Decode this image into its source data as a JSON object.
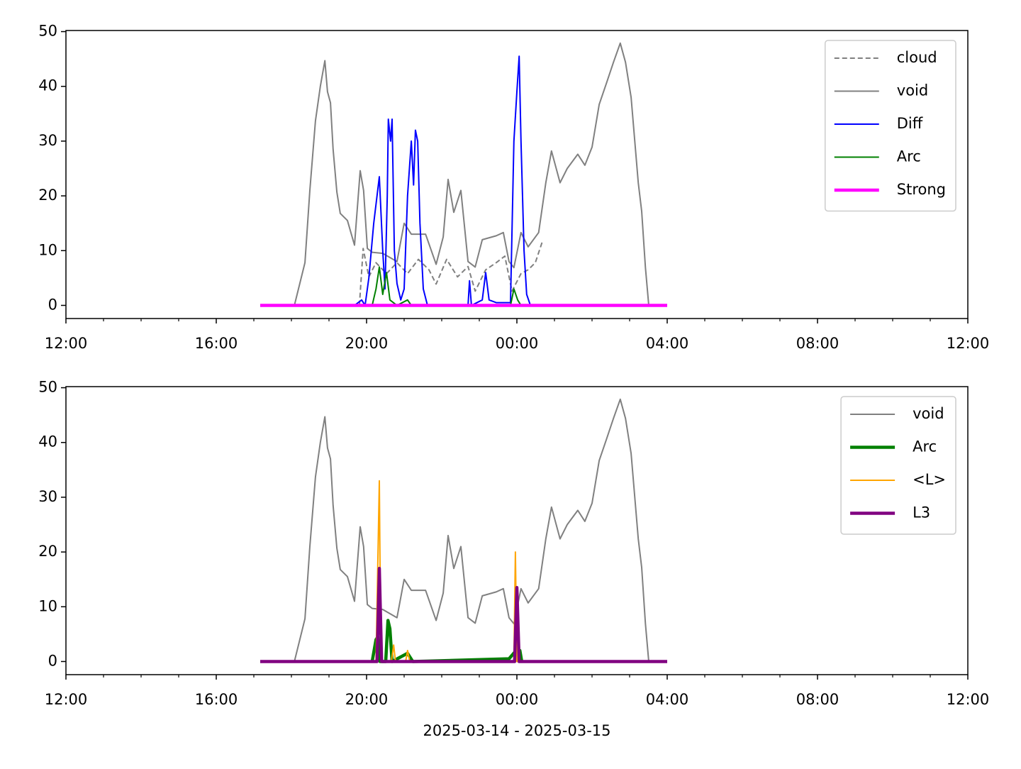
{
  "chart_data": [
    {
      "type": "line",
      "xlim": [
        12,
        36
      ],
      "ylim": [
        -2.4,
        50.2
      ],
      "xticks": [
        {
          "value": 12,
          "label": "12:00"
        },
        {
          "value": 16,
          "label": "16:00"
        },
        {
          "value": 20,
          "label": "20:00"
        },
        {
          "value": 24,
          "label": "00:00"
        },
        {
          "value": 28,
          "label": "04:00"
        },
        {
          "value": 32,
          "label": "08:00"
        },
        {
          "value": 36,
          "label": "12:00"
        }
      ],
      "xminorticks": [
        13,
        14,
        15,
        17,
        18,
        19,
        21,
        22,
        23,
        25,
        26,
        27,
        29,
        30,
        31,
        33,
        34,
        35
      ],
      "yticks": [
        0,
        10,
        20,
        30,
        40,
        50
      ],
      "legend": "upper right",
      "series": [
        {
          "name": "cloud",
          "color": "#808080",
          "linestyle": "dashed",
          "linewidth": 2,
          "x": [
            19.81,
            19.91,
            20.06,
            20.25,
            20.53,
            20.81,
            21.09,
            21.38,
            21.66,
            21.85,
            22.13,
            22.42,
            22.7,
            22.89,
            23.17,
            23.45,
            23.68,
            23.87,
            24.11,
            24.3,
            24.49,
            24.68
          ],
          "values": [
            0,
            10.4,
            5.2,
            7.8,
            5.8,
            7.8,
            5.8,
            8.4,
            6.5,
            3.9,
            8.4,
            5.2,
            7.1,
            2.6,
            6.5,
            7.8,
            9,
            2.6,
            5.8,
            6.5,
            7.8,
            11.7
          ]
        },
        {
          "name": "void",
          "color": "#808080",
          "linestyle": "solid",
          "linewidth": 2,
          "x": [
            17.17,
            18.08,
            18.36,
            18.49,
            18.64,
            18.77,
            18.89,
            18.96,
            19.04,
            19.11,
            19.21,
            19.3,
            19.49,
            19.68,
            19.83,
            19.92,
            20.02,
            20.15,
            20.43,
            20.81,
            21.0,
            21.19,
            21.57,
            21.85,
            22.04,
            22.17,
            22.32,
            22.51,
            22.7,
            22.89,
            23.08,
            23.45,
            23.64,
            23.79,
            23.92,
            24.11,
            24.3,
            24.58,
            24.77,
            24.92,
            25.15,
            25.34,
            25.62,
            25.81,
            26.0,
            26.19,
            26.38,
            26.57,
            26.75,
            26.89,
            27.04,
            27.23,
            27.32,
            27.42,
            27.51,
            28
          ],
          "values": [
            0,
            0,
            7.8,
            21,
            33.7,
            40,
            44.7,
            39,
            37,
            28.5,
            20.7,
            16.8,
            15.5,
            11,
            24.6,
            21,
            10.4,
            9.7,
            9.5,
            8,
            15,
            13,
            13,
            7.5,
            12.5,
            23,
            17,
            21,
            8,
            7,
            12,
            12.7,
            13.3,
            8,
            6.9,
            13.3,
            10.7,
            13.3,
            22.4,
            28.2,
            22.4,
            25,
            27.6,
            25.6,
            28.9,
            36.7,
            40.5,
            44.4,
            47.9,
            44.4,
            38,
            22.4,
            17.2,
            6.9,
            0,
            0
          ]
        },
        {
          "name": "Diff",
          "color": "#0000ff",
          "linestyle": "solid",
          "linewidth": 2,
          "x": [
            19.68,
            19.87,
            19.96,
            20.06,
            20.19,
            20.34,
            20.43,
            20.49,
            20.55,
            20.58,
            20.64,
            20.68,
            20.74,
            20.81,
            20.91,
            21.0,
            21.09,
            21.19,
            21.25,
            21.3,
            21.36,
            21.42,
            21.51,
            21.62,
            22.7,
            22.74,
            22.79,
            23.08,
            23.17,
            23.26,
            23.45,
            23.83,
            23.92,
            24.0,
            24.06,
            24.11,
            24.19,
            24.26,
            24.36
          ],
          "values": [
            0,
            1,
            0,
            5,
            15,
            23.5,
            10,
            3,
            20,
            34,
            30,
            34,
            10,
            4,
            1,
            3,
            20,
            30,
            22,
            32,
            30,
            15,
            3,
            0,
            0,
            4.5,
            0,
            1,
            6,
            1,
            0.5,
            0.5,
            30,
            39,
            45.5,
            30,
            10,
            2,
            0
          ]
        },
        {
          "name": "Arc",
          "color": "#008000",
          "linestyle": "solid",
          "linewidth": 2,
          "x": [
            20.15,
            20.25,
            20.34,
            20.43,
            20.53,
            20.62,
            20.81,
            21.09,
            21.19,
            23.83,
            23.92,
            24.02,
            24.11
          ],
          "values": [
            0,
            3,
            7,
            2,
            6,
            1,
            0,
            1,
            0,
            0,
            3,
            1,
            0
          ]
        },
        {
          "name": "Strong",
          "color": "#ff00ff",
          "linestyle": "solid",
          "linewidth": 4.5,
          "x": [
            17.17,
            28
          ],
          "values": [
            0,
            0
          ]
        }
      ]
    },
    {
      "type": "line",
      "xlabel": "2025-03-14 - 2025-03-15",
      "xlim": [
        12,
        36
      ],
      "ylim": [
        -2.4,
        50.2
      ],
      "xticks": [
        {
          "value": 12,
          "label": "12:00"
        },
        {
          "value": 16,
          "label": "16:00"
        },
        {
          "value": 20,
          "label": "20:00"
        },
        {
          "value": 24,
          "label": "00:00"
        },
        {
          "value": 28,
          "label": "04:00"
        },
        {
          "value": 32,
          "label": "08:00"
        },
        {
          "value": 36,
          "label": "12:00"
        }
      ],
      "xminorticks": [
        13,
        14,
        15,
        17,
        18,
        19,
        21,
        22,
        23,
        25,
        26,
        27,
        29,
        30,
        31,
        33,
        34,
        35
      ],
      "yticks": [
        0,
        10,
        20,
        30,
        40,
        50
      ],
      "legend": "upper right",
      "series": [
        {
          "name": "void",
          "color": "#808080",
          "linestyle": "solid",
          "linewidth": 2,
          "x": [
            17.17,
            18.08,
            18.36,
            18.49,
            18.64,
            18.77,
            18.89,
            18.96,
            19.04,
            19.11,
            19.21,
            19.3,
            19.49,
            19.68,
            19.83,
            19.92,
            20.02,
            20.15,
            20.43,
            20.81,
            21.0,
            21.19,
            21.57,
            21.85,
            22.04,
            22.17,
            22.32,
            22.51,
            22.7,
            22.89,
            23.08,
            23.45,
            23.64,
            23.79,
            23.92,
            24.11,
            24.3,
            24.58,
            24.77,
            24.92,
            25.15,
            25.34,
            25.62,
            25.81,
            26.0,
            26.19,
            26.38,
            26.57,
            26.75,
            26.89,
            27.04,
            27.23,
            27.32,
            27.42,
            27.51,
            28
          ],
          "values": [
            0,
            0,
            7.8,
            21,
            33.7,
            40,
            44.7,
            39,
            37,
            28.5,
            20.7,
            16.8,
            15.5,
            11,
            24.6,
            21,
            10.4,
            9.7,
            9.5,
            8,
            15,
            13,
            13,
            7.5,
            12.5,
            23,
            17,
            21,
            8,
            7,
            12,
            12.7,
            13.3,
            8,
            6.9,
            13.3,
            10.7,
            13.3,
            22.4,
            28.2,
            22.4,
            25,
            27.6,
            25.6,
            28.9,
            36.7,
            40.5,
            44.4,
            47.9,
            44.4,
            38,
            22.4,
            17.2,
            6.9,
            0,
            0
          ]
        },
        {
          "name": "Arc",
          "color": "#008000",
          "linestyle": "solid",
          "linewidth": 4.5,
          "x": [
            20.15,
            20.25,
            20.3,
            20.36,
            20.51,
            20.57,
            20.62,
            20.68,
            21.09,
            21.23,
            23.79,
            23.98,
            24.08,
            24.13
          ],
          "values": [
            0,
            4,
            4.5,
            0,
            0,
            7.5,
            6,
            0,
            1.5,
            0,
            0.5,
            2,
            2,
            0
          ]
        },
        {
          "name": "<L>",
          "color": "#ffa500",
          "linestyle": "solid",
          "linewidth": 2,
          "x": [
            17.17,
            20.25,
            20.34,
            20.38,
            20.66,
            20.72,
            20.77,
            21.04,
            21.09,
            21.15,
            23.92,
            23.96,
            24.0,
            28
          ],
          "values": [
            0,
            0,
            33,
            0,
            0,
            3,
            0,
            0,
            2,
            0,
            0,
            20,
            0,
            0
          ]
        },
        {
          "name": "L3",
          "color": "#800080",
          "linestyle": "solid",
          "linewidth": 4.5,
          "x": [
            17.17,
            20.28,
            20.34,
            20.4,
            23.94,
            24.0,
            24.06,
            28
          ],
          "values": [
            0,
            0,
            17,
            0,
            0,
            13.5,
            0,
            0
          ]
        }
      ]
    }
  ]
}
